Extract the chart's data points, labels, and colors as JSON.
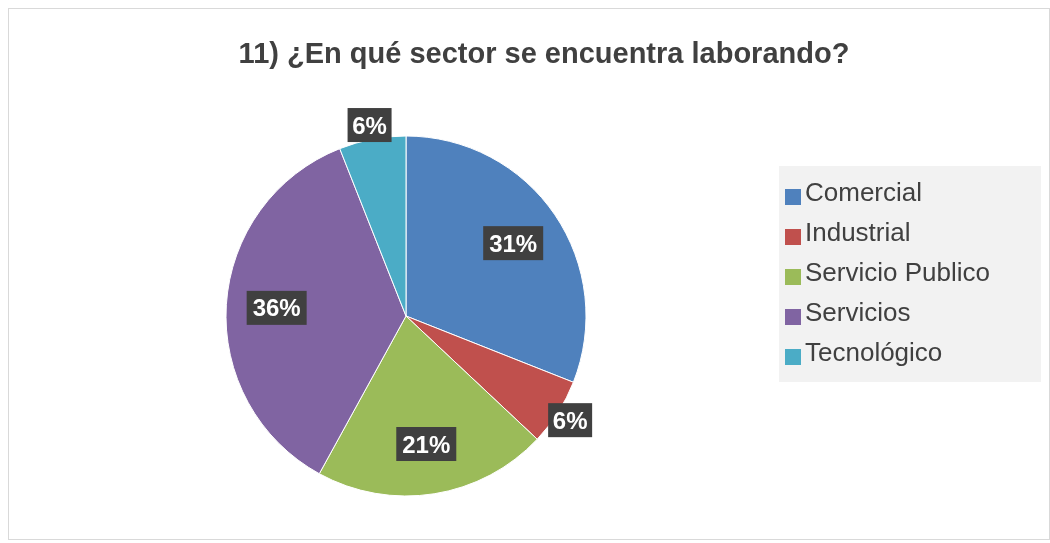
{
  "chart_data": {
    "type": "pie",
    "title": "11) ¿En qué sector se encuentra laborando?",
    "categories": [
      "Comercial",
      "Industrial",
      "Servicio Publico",
      "Servicios",
      "Tecnológico"
    ],
    "values": [
      31,
      6,
      21,
      36,
      6
    ],
    "colors": [
      "#4f81bd",
      "#c0504d",
      "#9bbb59",
      "#8064a2",
      "#4bacc6"
    ],
    "value_labels": [
      "31%",
      "6%",
      "21%",
      "36%",
      "6%"
    ],
    "legend": "right"
  }
}
